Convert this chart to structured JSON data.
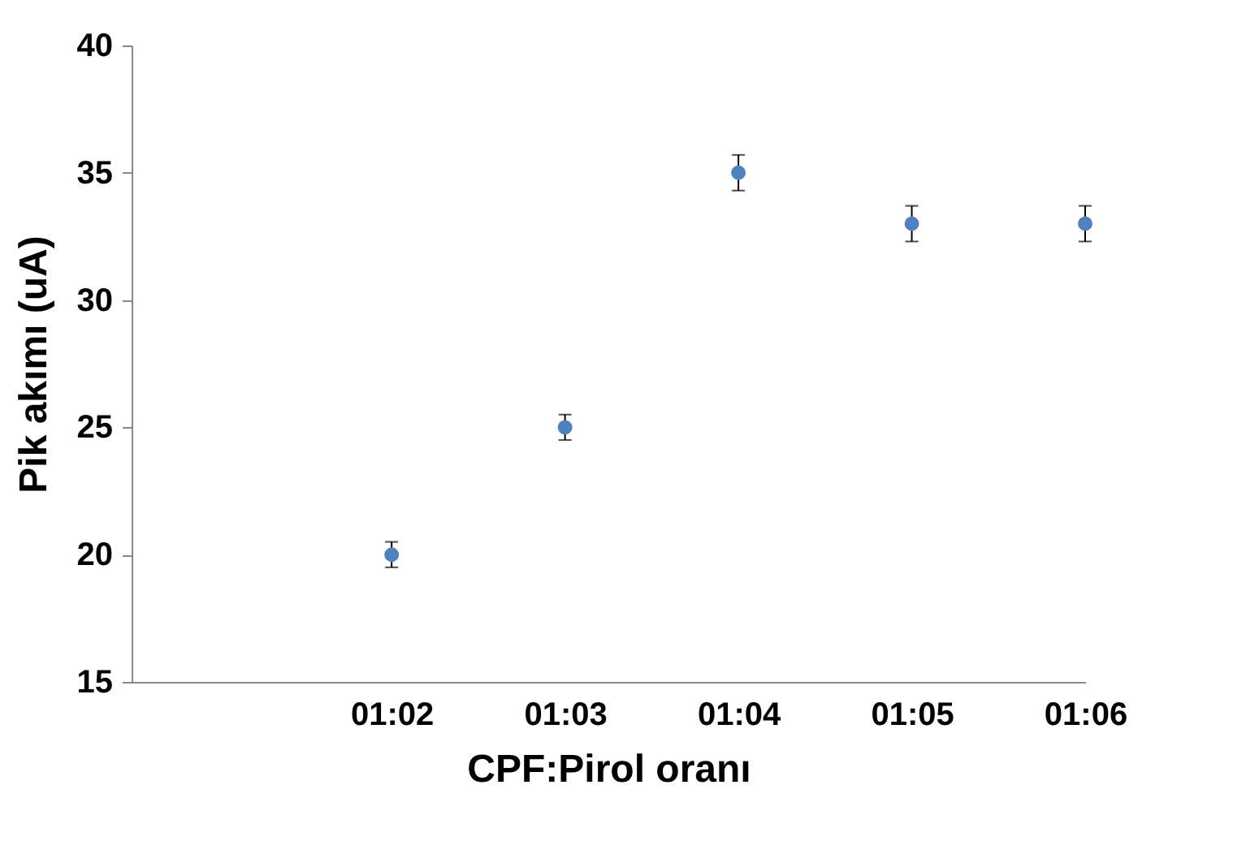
{
  "chart_data": {
    "type": "scatter",
    "xlabel": "CPF:Pirol oranı",
    "ylabel": "Pik akımı (uA)",
    "categories": [
      null,
      "01:02",
      "01:03",
      "01:04",
      "01:05",
      "01:06"
    ],
    "values": [
      null,
      20,
      25,
      35,
      33,
      33
    ],
    "errors": [
      null,
      0.5,
      0.5,
      0.7,
      0.7,
      0.7
    ],
    "color": "#4f81bd",
    "marker": "circle",
    "ylim": [
      15,
      40
    ],
    "yticks": [
      15,
      20,
      25,
      30,
      35,
      40
    ],
    "grid": false
  }
}
